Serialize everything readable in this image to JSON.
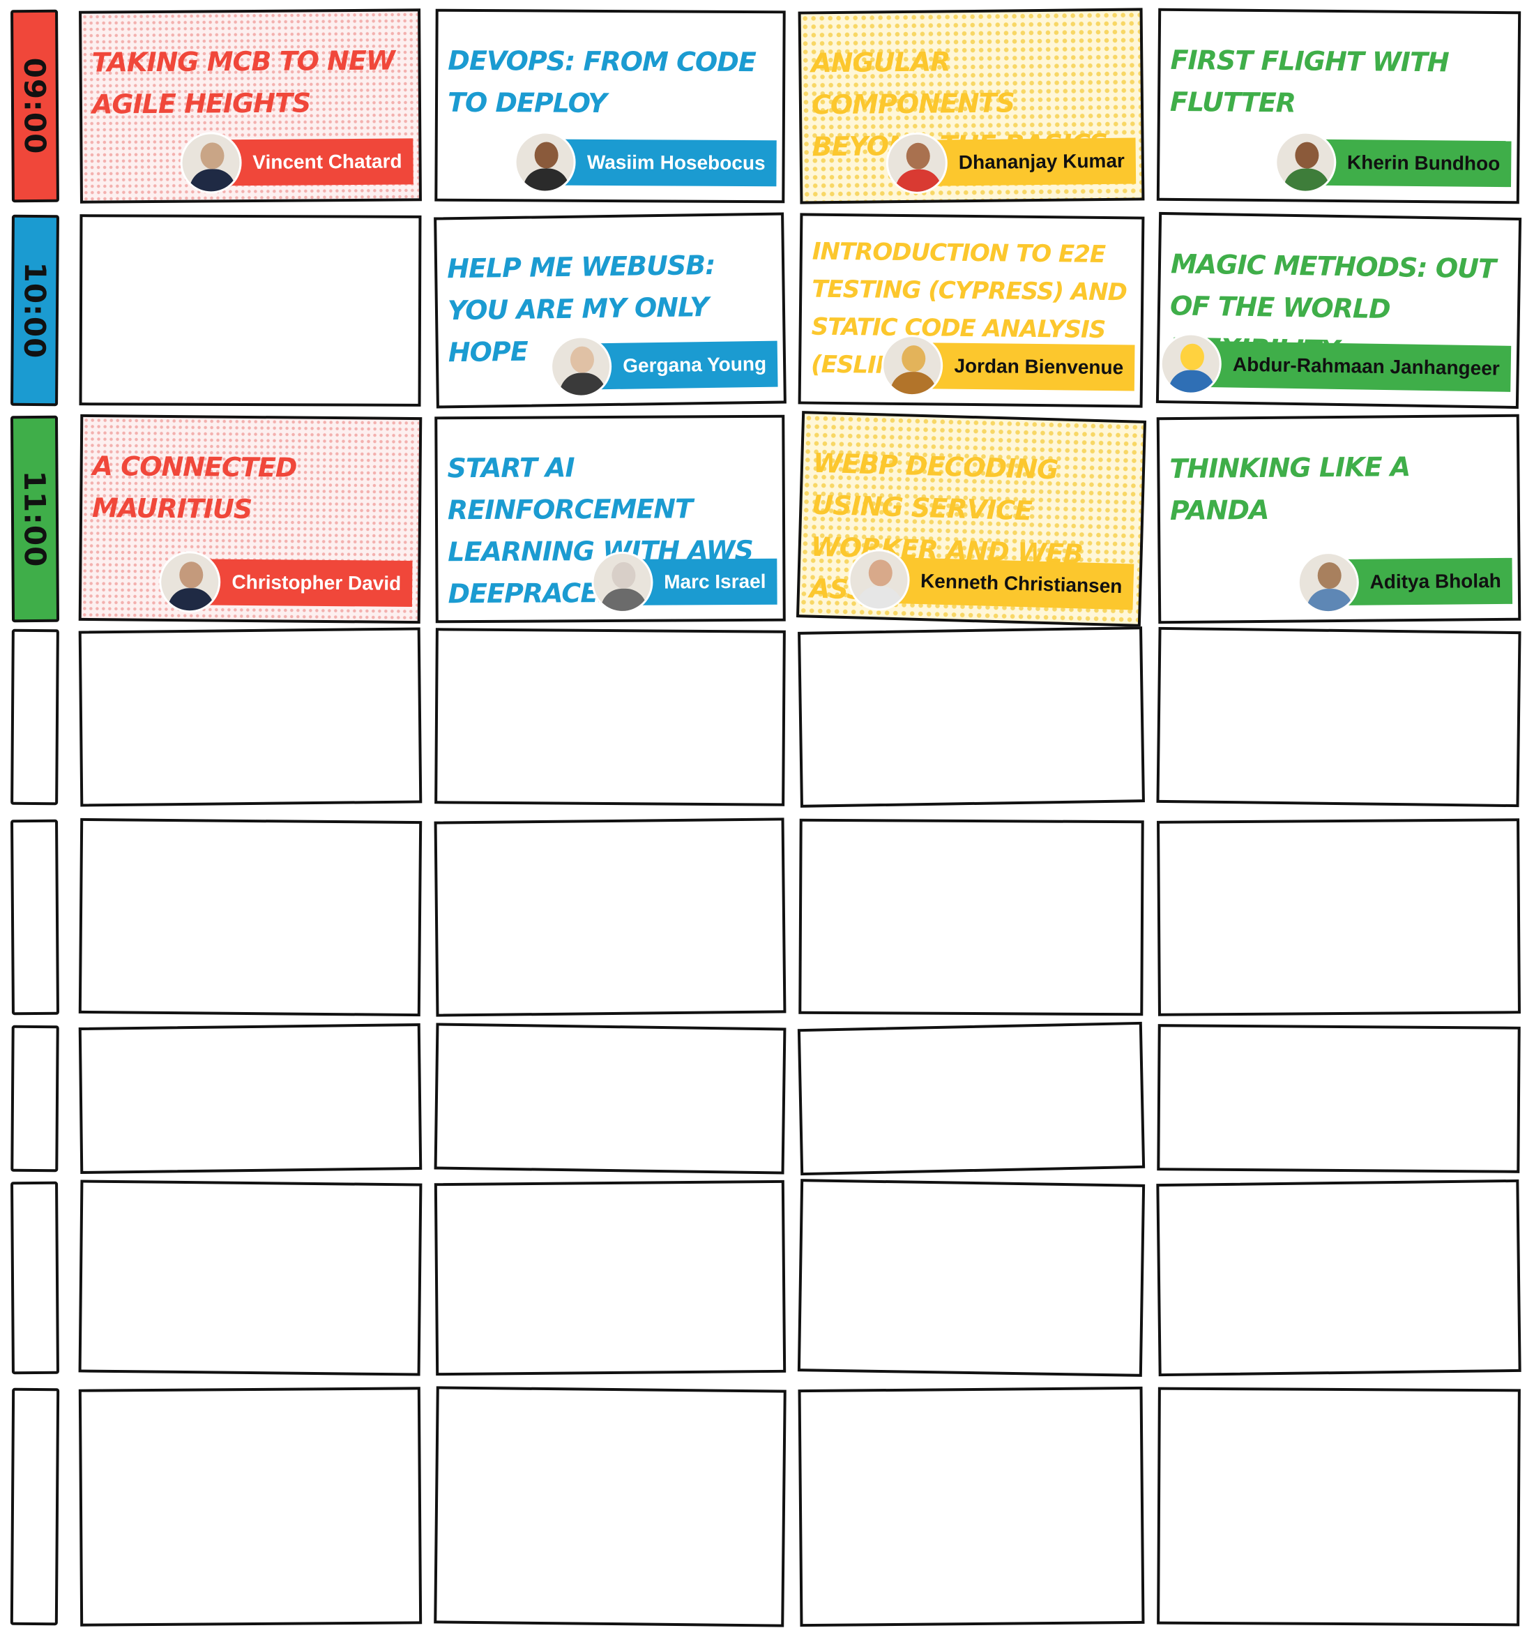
{
  "colors": {
    "red": "#f0473a",
    "blue": "#1b9bd1",
    "yellow": "#fcc72d",
    "green": "#3fae49",
    "outline": "#111111"
  },
  "times": [
    {
      "label": "09:00",
      "color": "red"
    },
    {
      "label": "10:00",
      "color": "blue"
    },
    {
      "label": "11:00",
      "color": "green"
    },
    {
      "label": "",
      "color": ""
    },
    {
      "label": "",
      "color": ""
    },
    {
      "label": "",
      "color": ""
    },
    {
      "label": "",
      "color": ""
    },
    {
      "label": "",
      "color": ""
    }
  ],
  "talks": [
    [
      {
        "title": "Taking MCB to new Agile Heights",
        "speaker": "Vincent Chatard",
        "color": "red",
        "pattern": "dots-red",
        "avatar": "photo-vincent-chatard"
      },
      {
        "title": "DevOps: From Code to Deploy",
        "speaker": "Wasiim Hosebocus",
        "color": "blue",
        "pattern": "",
        "avatar": "photo-wasiim-hosebocus"
      },
      {
        "title": "Angular Components Beyond the Basics",
        "speaker": "Dhananjay Kumar",
        "color": "yellow",
        "pattern": "dots-yellow",
        "avatar": "photo-dhananjay-kumar"
      },
      {
        "title": "First Flight with Flutter",
        "speaker": "Kherin Bundhoo",
        "color": "green",
        "pattern": "",
        "avatar": "photo-kherin-bundhoo"
      }
    ],
    [
      null,
      {
        "title": "Help me WebUSB: You are my only hope",
        "speaker": "Gergana Young",
        "color": "blue",
        "pattern": "",
        "avatar": "photo-gergana-young"
      },
      {
        "title": "Introduction to E2E Testing (Cypress) and Static Code Analysis (ESLint)",
        "speaker": "Jordan Bienvenue",
        "color": "yellow",
        "pattern": "",
        "avatar": "photo-jordan-bienvenue"
      },
      {
        "title": "Magic Methods: Out of the World Flexibility",
        "speaker": "Abdur-Rahmaan Janhangeer",
        "color": "green",
        "pattern": "",
        "avatar": "logo-abdur-rahmaan-janhangeer"
      }
    ],
    [
      {
        "title": "A Connected Mauritius",
        "speaker": "Christopher David",
        "color": "red",
        "pattern": "dots-red",
        "avatar": "photo-christopher-david"
      },
      {
        "title": "Start AI Reinforcement Learning with AWS DeepRacer",
        "speaker": "Marc Israel",
        "color": "blue",
        "pattern": "",
        "avatar": "photo-marc-israel"
      },
      {
        "title": "WebP Decoding using Service Worker and Web Assembly",
        "speaker": "Kenneth Christiansen",
        "color": "yellow",
        "pattern": "dots-yellow",
        "avatar": "photo-kenneth-christiansen"
      },
      {
        "title": "Thinking like a Panda",
        "speaker": "Aditya Bholah",
        "color": "green",
        "pattern": "",
        "avatar": "photo-aditya-bholah"
      }
    ],
    [
      null,
      null,
      null,
      null
    ],
    [
      null,
      null,
      null,
      null
    ],
    [
      null,
      null,
      null,
      null
    ],
    [
      null,
      null,
      null,
      null
    ],
    [
      null,
      null,
      null,
      null
    ]
  ]
}
